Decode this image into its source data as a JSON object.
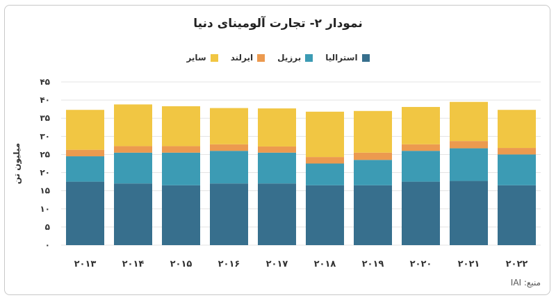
{
  "colors": {
    "background": "#ffffff",
    "grid": "#e3e3e3"
  },
  "chart_data": {
    "type": "bar",
    "stacked": true,
    "title": "نمودار ۲- تجارت آلومینای دنیا",
    "ylabel": "میلیون تن",
    "xlabel": "",
    "ylim": [
      0,
      45
    ],
    "yticks": [
      0,
      5,
      10,
      15,
      20,
      25,
      30,
      35,
      40,
      45
    ],
    "ytick_labels": [
      "۰",
      "۵",
      "۱۰",
      "۱۵",
      "۲۰",
      "۲۵",
      "۳۰",
      "۳۵",
      "۴۰",
      "۴۵"
    ],
    "grid": true,
    "legend_position": "top",
    "categories": [
      "۲۰۱۳",
      "۲۰۱۴",
      "۲۰۱۵",
      "۲۰۱۶",
      "۲۰۱۷",
      "۲۰۱۸",
      "۲۰۱۹",
      "۲۰۲۰",
      "۲۰۲۱",
      "۲۰۲۲"
    ],
    "series": [
      {
        "name": "استرالیا",
        "color": "#376f8d",
        "values": [
          17.5,
          17,
          16.5,
          17,
          17,
          16.5,
          16.5,
          17.5,
          17.7,
          16.5
        ]
      },
      {
        "name": "برزیل",
        "color": "#3c9bb4",
        "values": [
          7,
          8.5,
          9,
          9,
          8.5,
          6,
          7,
          8.5,
          9,
          8.5
        ]
      },
      {
        "name": "ایرلند",
        "color": "#ec9a4f",
        "values": [
          1.8,
          1.8,
          1.8,
          1.8,
          1.7,
          1.8,
          2,
          1.8,
          2,
          1.8
        ]
      },
      {
        "name": "سایر",
        "color": "#f1c643",
        "values": [
          11,
          11.5,
          11,
          10,
          10.5,
          12.5,
          11.5,
          10.3,
          10.8,
          10.5
        ]
      }
    ]
  },
  "source_label": "منبع: IAI"
}
